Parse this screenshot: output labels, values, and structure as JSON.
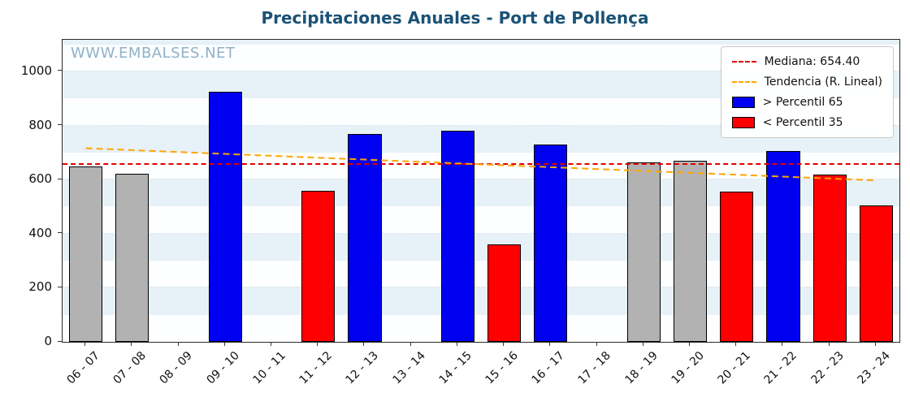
{
  "watermark": "WWW.EMBALSES.NET",
  "chart_data": {
    "type": "bar",
    "title": "Precipitaciones Anuales - Port de Pollença",
    "xlabel": "",
    "ylabel": "",
    "categories": [
      "06 - 07",
      "07 - 08",
      "08 - 09",
      "09 - 10",
      "10 - 11",
      "11 - 12",
      "12 - 13",
      "13 - 14",
      "14 - 15",
      "15 - 16",
      "16 - 17",
      "17 - 18",
      "18 - 19",
      "19 - 20",
      "20 - 21",
      "21 - 22",
      "22 - 23",
      "23 - 24"
    ],
    "values": [
      648,
      622,
      null,
      925,
      null,
      560,
      768,
      null,
      780,
      360,
      730,
      null,
      665,
      670,
      555,
      705,
      618,
      505
    ],
    "bar_colors": [
      "gray",
      "gray",
      null,
      "blue",
      null,
      "red",
      "blue",
      null,
      "blue",
      "red",
      "blue",
      null,
      "gray",
      "gray",
      "red",
      "blue",
      "red",
      "red"
    ],
    "median": {
      "value": 654.4,
      "label": "Mediana: 654.40"
    },
    "trend": {
      "label": "Tendencia (R. Lineal)",
      "start": 716,
      "end": 597
    },
    "legend": [
      {
        "label": "Mediana: 654.40",
        "type": "dashed-line",
        "color_key": "median"
      },
      {
        "label": "Tendencia (R. Lineal)",
        "type": "dashed-line",
        "color_key": "trend"
      },
      {
        "label": "> Percentil 65",
        "type": "patch",
        "color_key": "blue"
      },
      {
        "label": "< Percentil 35",
        "type": "patch",
        "color_key": "red"
      }
    ],
    "ylim": [
      0,
      1117
    ],
    "yticks": [
      0,
      200,
      400,
      600,
      800,
      1000
    ],
    "grid": true,
    "legend_position": "top-right",
    "colors": {
      "gray": "#b2b2b2",
      "blue": "#0000f0",
      "red": "#ff0000",
      "median": "#e30000",
      "trend": "#ffa502",
      "band": "#e7f1f8",
      "grid": "#c6d6e0",
      "title": "#1a5276",
      "watermark": "#8fb2c9"
    }
  }
}
